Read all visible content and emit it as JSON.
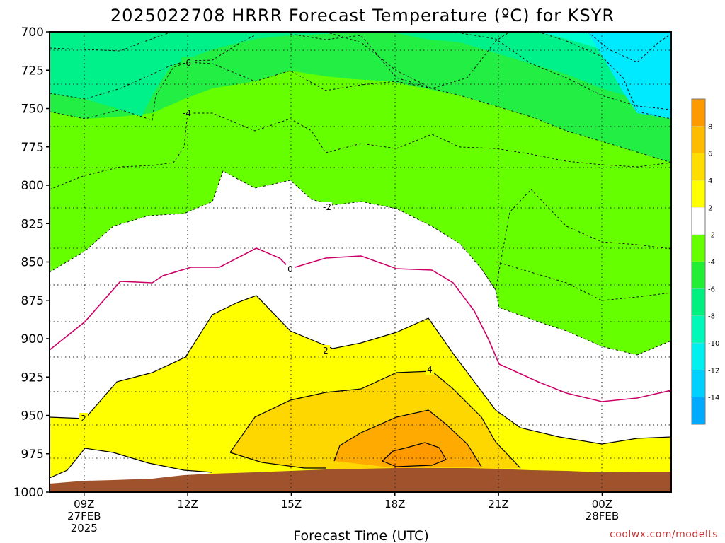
{
  "chart_data": {
    "type": "heatmap",
    "title": "2025022708 HRRR Forecast Temperature (ºC) for KSYR",
    "xlabel": "Forecast Time (UTC)",
    "ylabel": "",
    "credit": "coolwx.com/modelts",
    "y_axis": {
      "range": [
        700,
        1000
      ],
      "ticks": [
        "700",
        "725",
        "750",
        "775",
        "800",
        "825",
        "850",
        "875",
        "900",
        "925",
        "950",
        "975",
        "1000"
      ]
    },
    "x_axis": {
      "range_hours": [
        8,
        26
      ],
      "ticks": [
        {
          "hour": 9,
          "lines": [
            "09Z",
            "27FEB",
            "2025"
          ]
        },
        {
          "hour": 12,
          "lines": [
            "12Z"
          ]
        },
        {
          "hour": 15,
          "lines": [
            "15Z"
          ]
        },
        {
          "hour": 18,
          "lines": [
            "18Z"
          ]
        },
        {
          "hour": 21,
          "lines": [
            "21Z"
          ]
        },
        {
          "hour": 24,
          "lines": [
            "00Z",
            "28FEB"
          ]
        }
      ]
    },
    "colorbar": {
      "levels": [
        "-14",
        "-12",
        "-10",
        "-8",
        "-6",
        "-4",
        "-2",
        "2",
        "4",
        "6",
        "8"
      ],
      "bins": [
        {
          "color": "#00aaff"
        },
        {
          "color": "#00d0ff"
        },
        {
          "color": "#00f0f0"
        },
        {
          "color": "#00f8b8"
        },
        {
          "color": "#00f080"
        },
        {
          "color": "#22ee33"
        },
        {
          "color": "#66ff00"
        },
        {
          "color": "#ffffff"
        },
        {
          "color": "#ffff00"
        },
        {
          "color": "#ffdd00"
        },
        {
          "color": "#ffbb00"
        },
        {
          "color": "#ff9900"
        }
      ]
    },
    "contour_labels": [
      "-6",
      "-4",
      "-2",
      "0",
      "2",
      "4",
      "2"
    ],
    "regions": [
      {
        "name": "cold-teal",
        "color": "#00ffd0",
        "value_range": [
          -10,
          -8
        ]
      },
      {
        "name": "cyan",
        "color": "#00eaff",
        "value_range": [
          -12,
          -10
        ]
      },
      {
        "name": "green",
        "color": "#00f08a",
        "value_range": [
          -8,
          -6
        ]
      },
      {
        "name": "bright-green",
        "color": "#22ee44",
        "value_range": [
          -6,
          -4
        ]
      },
      {
        "name": "lime",
        "color": "#66ff00",
        "value_range": [
          -4,
          -2
        ]
      },
      {
        "name": "white",
        "color": "#ffffff",
        "value_range": [
          -2,
          2
        ]
      },
      {
        "name": "yellow",
        "color": "#ffff00",
        "value_range": [
          2,
          4
        ]
      },
      {
        "name": "gold",
        "color": "#ffd700",
        "value_range": [
          4,
          6
        ]
      },
      {
        "name": "orange",
        "color": "#ffaa00",
        "value_range": [
          6,
          8
        ]
      },
      {
        "name": "dark-orange",
        "color": "#ff9900",
        "value_range": [
          8,
          10
        ]
      },
      {
        "name": "terrain",
        "color": "#a0522d",
        "value_range": null
      }
    ]
  }
}
